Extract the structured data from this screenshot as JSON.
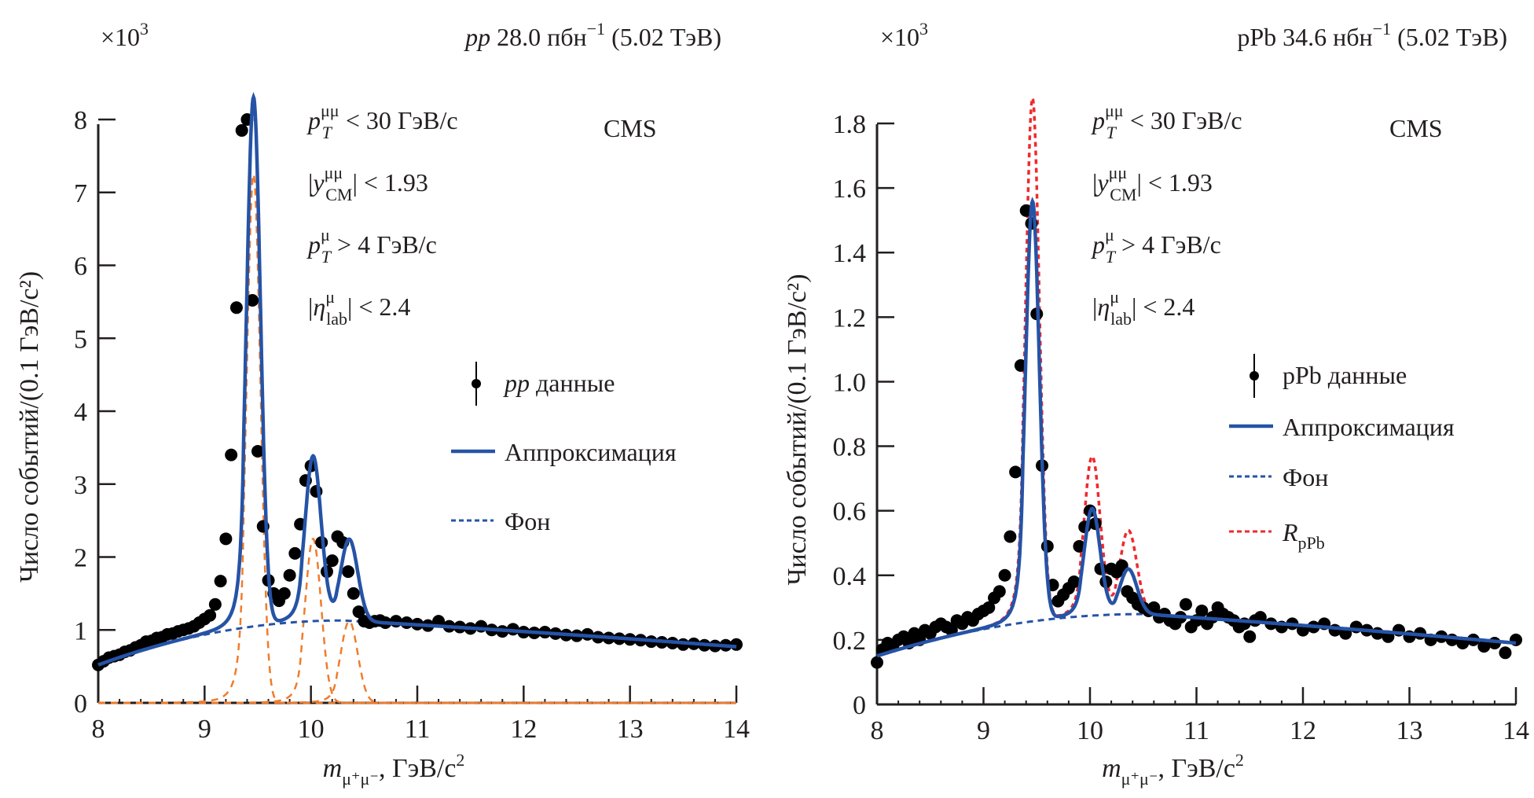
{
  "chart_data": [
    {
      "type": "scatter",
      "panel": "left",
      "multiplier": "×10",
      "multiplier_exp": "3",
      "header": {
        "italic": "pp",
        "text": " 28.0 пбн",
        "sup": "−1",
        "tail": " (5.02 ТэВ)"
      },
      "experiment": "CMS",
      "cuts": [
        {
          "pre": "",
          "var": "p",
          "sub": "T",
          "sup": "μμ",
          "post": " < 30 ГэВ/c"
        },
        {
          "pre": "|",
          "var": "y",
          "sub": "CM",
          "sup": "μμ",
          "post": "| < 1.93"
        },
        {
          "pre": "",
          "var": "p",
          "sub": "T",
          "sup": "μ",
          "post": " > 4 ГэВ/c"
        },
        {
          "pre": "|",
          "var": "η",
          "sub": "lab",
          "sup": "μ",
          "post": "| < 2.4"
        }
      ],
      "xlabel": {
        "var": "m",
        "sub": "μ⁺μ⁻",
        "post": ", ГэВ/c",
        "sup": "2"
      },
      "ylabel": "Число событий/(0.1 ГэВ/c²)",
      "xlim": [
        8,
        14
      ],
      "ylim": [
        0,
        8.6
      ],
      "xticks": [
        "8",
        "9",
        "10",
        "11",
        "12",
        "13",
        "14"
      ],
      "yticks": [
        "0",
        "1",
        "2",
        "3",
        "4",
        "5",
        "6",
        "7",
        "8"
      ],
      "legend": [
        {
          "label_italic": "pp",
          "label": " данные",
          "style": "data"
        },
        {
          "label_italic": "",
          "label": "Аппроксимация",
          "style": "fit"
        },
        {
          "label_italic": "",
          "label": "Фон",
          "style": "bkg"
        }
      ],
      "legend_position": "center-right",
      "colors": {
        "data": "#000000",
        "fit": "#2553a6",
        "bkg": "#2553a6",
        "signal": "#f07c2b"
      },
      "data_points": {
        "x": [
          8.0,
          8.05,
          8.1,
          8.15,
          8.2,
          8.25,
          8.3,
          8.35,
          8.4,
          8.45,
          8.5,
          8.55,
          8.6,
          8.65,
          8.7,
          8.75,
          8.8,
          8.85,
          8.9,
          8.95,
          9.0,
          9.05,
          9.1,
          9.15,
          9.2,
          9.25,
          9.3,
          9.35,
          9.4,
          9.45,
          9.5,
          9.55,
          9.6,
          9.65,
          9.7,
          9.75,
          9.8,
          9.85,
          9.9,
          9.95,
          10.0,
          10.05,
          10.1,
          10.15,
          10.2,
          10.25,
          10.3,
          10.35,
          10.4,
          10.45,
          10.5,
          10.55,
          10.6,
          10.65,
          10.7,
          10.8,
          10.9,
          11.0,
          11.1,
          11.2,
          11.3,
          11.4,
          11.5,
          11.6,
          11.7,
          11.8,
          11.9,
          12.0,
          12.1,
          12.2,
          12.3,
          12.4,
          12.5,
          12.6,
          12.7,
          12.8,
          12.9,
          13.0,
          13.1,
          13.2,
          13.3,
          13.4,
          13.5,
          13.6,
          13.7,
          13.8,
          13.9,
          14.0
        ],
        "y": [
          0.52,
          0.57,
          0.62,
          0.64,
          0.66,
          0.7,
          0.72,
          0.76,
          0.79,
          0.84,
          0.85,
          0.89,
          0.9,
          0.94,
          0.95,
          0.98,
          1.0,
          1.02,
          1.05,
          1.1,
          1.15,
          1.2,
          1.35,
          1.67,
          2.25,
          3.4,
          5.42,
          7.85,
          8.0,
          5.52,
          3.45,
          2.42,
          1.68,
          1.5,
          1.4,
          1.5,
          1.75,
          2.05,
          2.45,
          3.05,
          3.25,
          2.9,
          2.2,
          1.8,
          1.95,
          2.28,
          2.2,
          1.8,
          1.5,
          1.25,
          1.12,
          1.1,
          1.12,
          1.13,
          1.1,
          1.12,
          1.1,
          1.08,
          1.06,
          1.12,
          1.05,
          1.04,
          1.02,
          1.05,
          1.0,
          0.98,
          1.01,
          0.97,
          0.96,
          0.97,
          0.95,
          0.93,
          0.92,
          0.94,
          0.9,
          0.89,
          0.88,
          0.87,
          0.86,
          0.84,
          0.83,
          0.82,
          0.8,
          0.81,
          0.79,
          0.78,
          0.79,
          0.8
        ]
      },
      "fit": {
        "peaks": [
          {
            "mass": 9.46,
            "height": 7.25,
            "width": 0.065
          },
          {
            "mass": 10.02,
            "height": 2.25,
            "width": 0.075
          },
          {
            "mass": 10.36,
            "height": 1.12,
            "width": 0.08
          }
        ],
        "background": {
          "at_8": 0.52,
          "peak_x": 10.3,
          "peak_y": 1.13,
          "at_14": 0.77
        }
      }
    },
    {
      "type": "scatter",
      "panel": "right",
      "multiplier": "×10",
      "multiplier_exp": "3",
      "header": {
        "italic": "",
        "text": "pPb 34.6 нбн",
        "sup": "−1",
        "tail": " (5.02 ТэВ)"
      },
      "experiment": "CMS",
      "cuts": [
        {
          "pre": "",
          "var": "p",
          "sub": "T",
          "sup": "μμ",
          "post": " < 30 ГэВ/c"
        },
        {
          "pre": "|",
          "var": "y",
          "sub": "CM",
          "sup": "μμ",
          "post": "| < 1.93"
        },
        {
          "pre": "",
          "var": "p",
          "sub": "T",
          "sup": "μ",
          "post": " > 4 ГэВ/c"
        },
        {
          "pre": "|",
          "var": "η",
          "sub": "lab",
          "sup": "μ",
          "post": "| < 2.4"
        }
      ],
      "xlabel": {
        "var": "m",
        "sub": "μ⁺μ⁻",
        "post": ", ГэВ/c",
        "sup": "2"
      },
      "ylabel": "Число событий/(0.1 ГэВ/c²)",
      "xlim": [
        8,
        14
      ],
      "ylim": [
        0,
        1.95
      ],
      "xticks": [
        "8",
        "9",
        "10",
        "11",
        "12",
        "13",
        "14"
      ],
      "yticks": [
        "0",
        "0.2",
        "0.4",
        "0.6",
        "0.8",
        "1.0",
        "1.2",
        "1.4",
        "1.6",
        "1.8"
      ],
      "legend": [
        {
          "label_italic": "",
          "label": "pPb данные",
          "style": "data"
        },
        {
          "label_italic": "",
          "label": "Аппроксимация",
          "style": "fit"
        },
        {
          "label_italic": "",
          "label": "Фон",
          "style": "bkg"
        },
        {
          "label_italic": "R",
          "label": "pPb",
          "style": "rppb"
        }
      ],
      "legend_position": "center-right",
      "colors": {
        "data": "#000000",
        "fit": "#2553a6",
        "bkg": "#2553a6",
        "rppb": "#ee2a2e"
      },
      "data_points": {
        "x": [
          8.0,
          8.05,
          8.1,
          8.15,
          8.2,
          8.25,
          8.3,
          8.35,
          8.4,
          8.45,
          8.5,
          8.55,
          8.6,
          8.65,
          8.7,
          8.75,
          8.8,
          8.85,
          8.9,
          8.95,
          9.0,
          9.05,
          9.1,
          9.15,
          9.2,
          9.25,
          9.3,
          9.35,
          9.4,
          9.45,
          9.5,
          9.55,
          9.6,
          9.65,
          9.7,
          9.75,
          9.8,
          9.85,
          9.9,
          9.95,
          10.0,
          10.05,
          10.1,
          10.15,
          10.2,
          10.25,
          10.3,
          10.35,
          10.4,
          10.45,
          10.5,
          10.55,
          10.6,
          10.65,
          10.7,
          10.75,
          10.8,
          10.85,
          10.9,
          10.95,
          11.0,
          11.05,
          11.1,
          11.15,
          11.2,
          11.25,
          11.3,
          11.35,
          11.4,
          11.45,
          11.5,
          11.55,
          11.6,
          11.7,
          11.8,
          11.9,
          12.0,
          12.1,
          12.2,
          12.3,
          12.4,
          12.5,
          12.6,
          12.7,
          12.8,
          12.9,
          13.0,
          13.1,
          13.2,
          13.3,
          13.4,
          13.5,
          13.6,
          13.7,
          13.8,
          13.9,
          14.0
        ],
        "y": [
          0.13,
          0.17,
          0.19,
          0.18,
          0.2,
          0.21,
          0.19,
          0.22,
          0.2,
          0.23,
          0.22,
          0.24,
          0.25,
          0.24,
          0.23,
          0.26,
          0.25,
          0.27,
          0.26,
          0.28,
          0.29,
          0.3,
          0.33,
          0.35,
          0.4,
          0.52,
          0.72,
          1.05,
          1.53,
          1.49,
          1.21,
          0.74,
          0.49,
          0.37,
          0.32,
          0.34,
          0.36,
          0.38,
          0.49,
          0.55,
          0.6,
          0.56,
          0.42,
          0.38,
          0.42,
          0.41,
          0.43,
          0.35,
          0.33,
          0.31,
          0.3,
          0.29,
          0.3,
          0.27,
          0.28,
          0.26,
          0.25,
          0.27,
          0.31,
          0.24,
          0.26,
          0.29,
          0.25,
          0.27,
          0.3,
          0.28,
          0.27,
          0.26,
          0.24,
          0.25,
          0.21,
          0.26,
          0.27,
          0.25,
          0.24,
          0.25,
          0.23,
          0.24,
          0.25,
          0.23,
          0.22,
          0.24,
          0.23,
          0.22,
          0.21,
          0.23,
          0.21,
          0.22,
          0.2,
          0.21,
          0.2,
          0.19,
          0.2,
          0.18,
          0.19,
          0.16,
          0.2
        ]
      },
      "fit": {
        "peaks": [
          {
            "mass": 9.46,
            "height": 1.3,
            "width": 0.065
          },
          {
            "mass": 10.02,
            "height": 0.33,
            "width": 0.075
          },
          {
            "mass": 10.36,
            "height": 0.14,
            "width": 0.08
          }
        ],
        "background": {
          "at_8": 0.15,
          "peak_x": 10.5,
          "peak_y": 0.28,
          "at_14": 0.19
        }
      },
      "rppb": {
        "peaks": [
          {
            "mass": 9.46,
            "height": 1.62,
            "width": 0.065
          },
          {
            "mass": 10.02,
            "height": 0.49,
            "width": 0.075
          },
          {
            "mass": 10.36,
            "height": 0.26,
            "width": 0.08
          }
        ]
      }
    }
  ]
}
